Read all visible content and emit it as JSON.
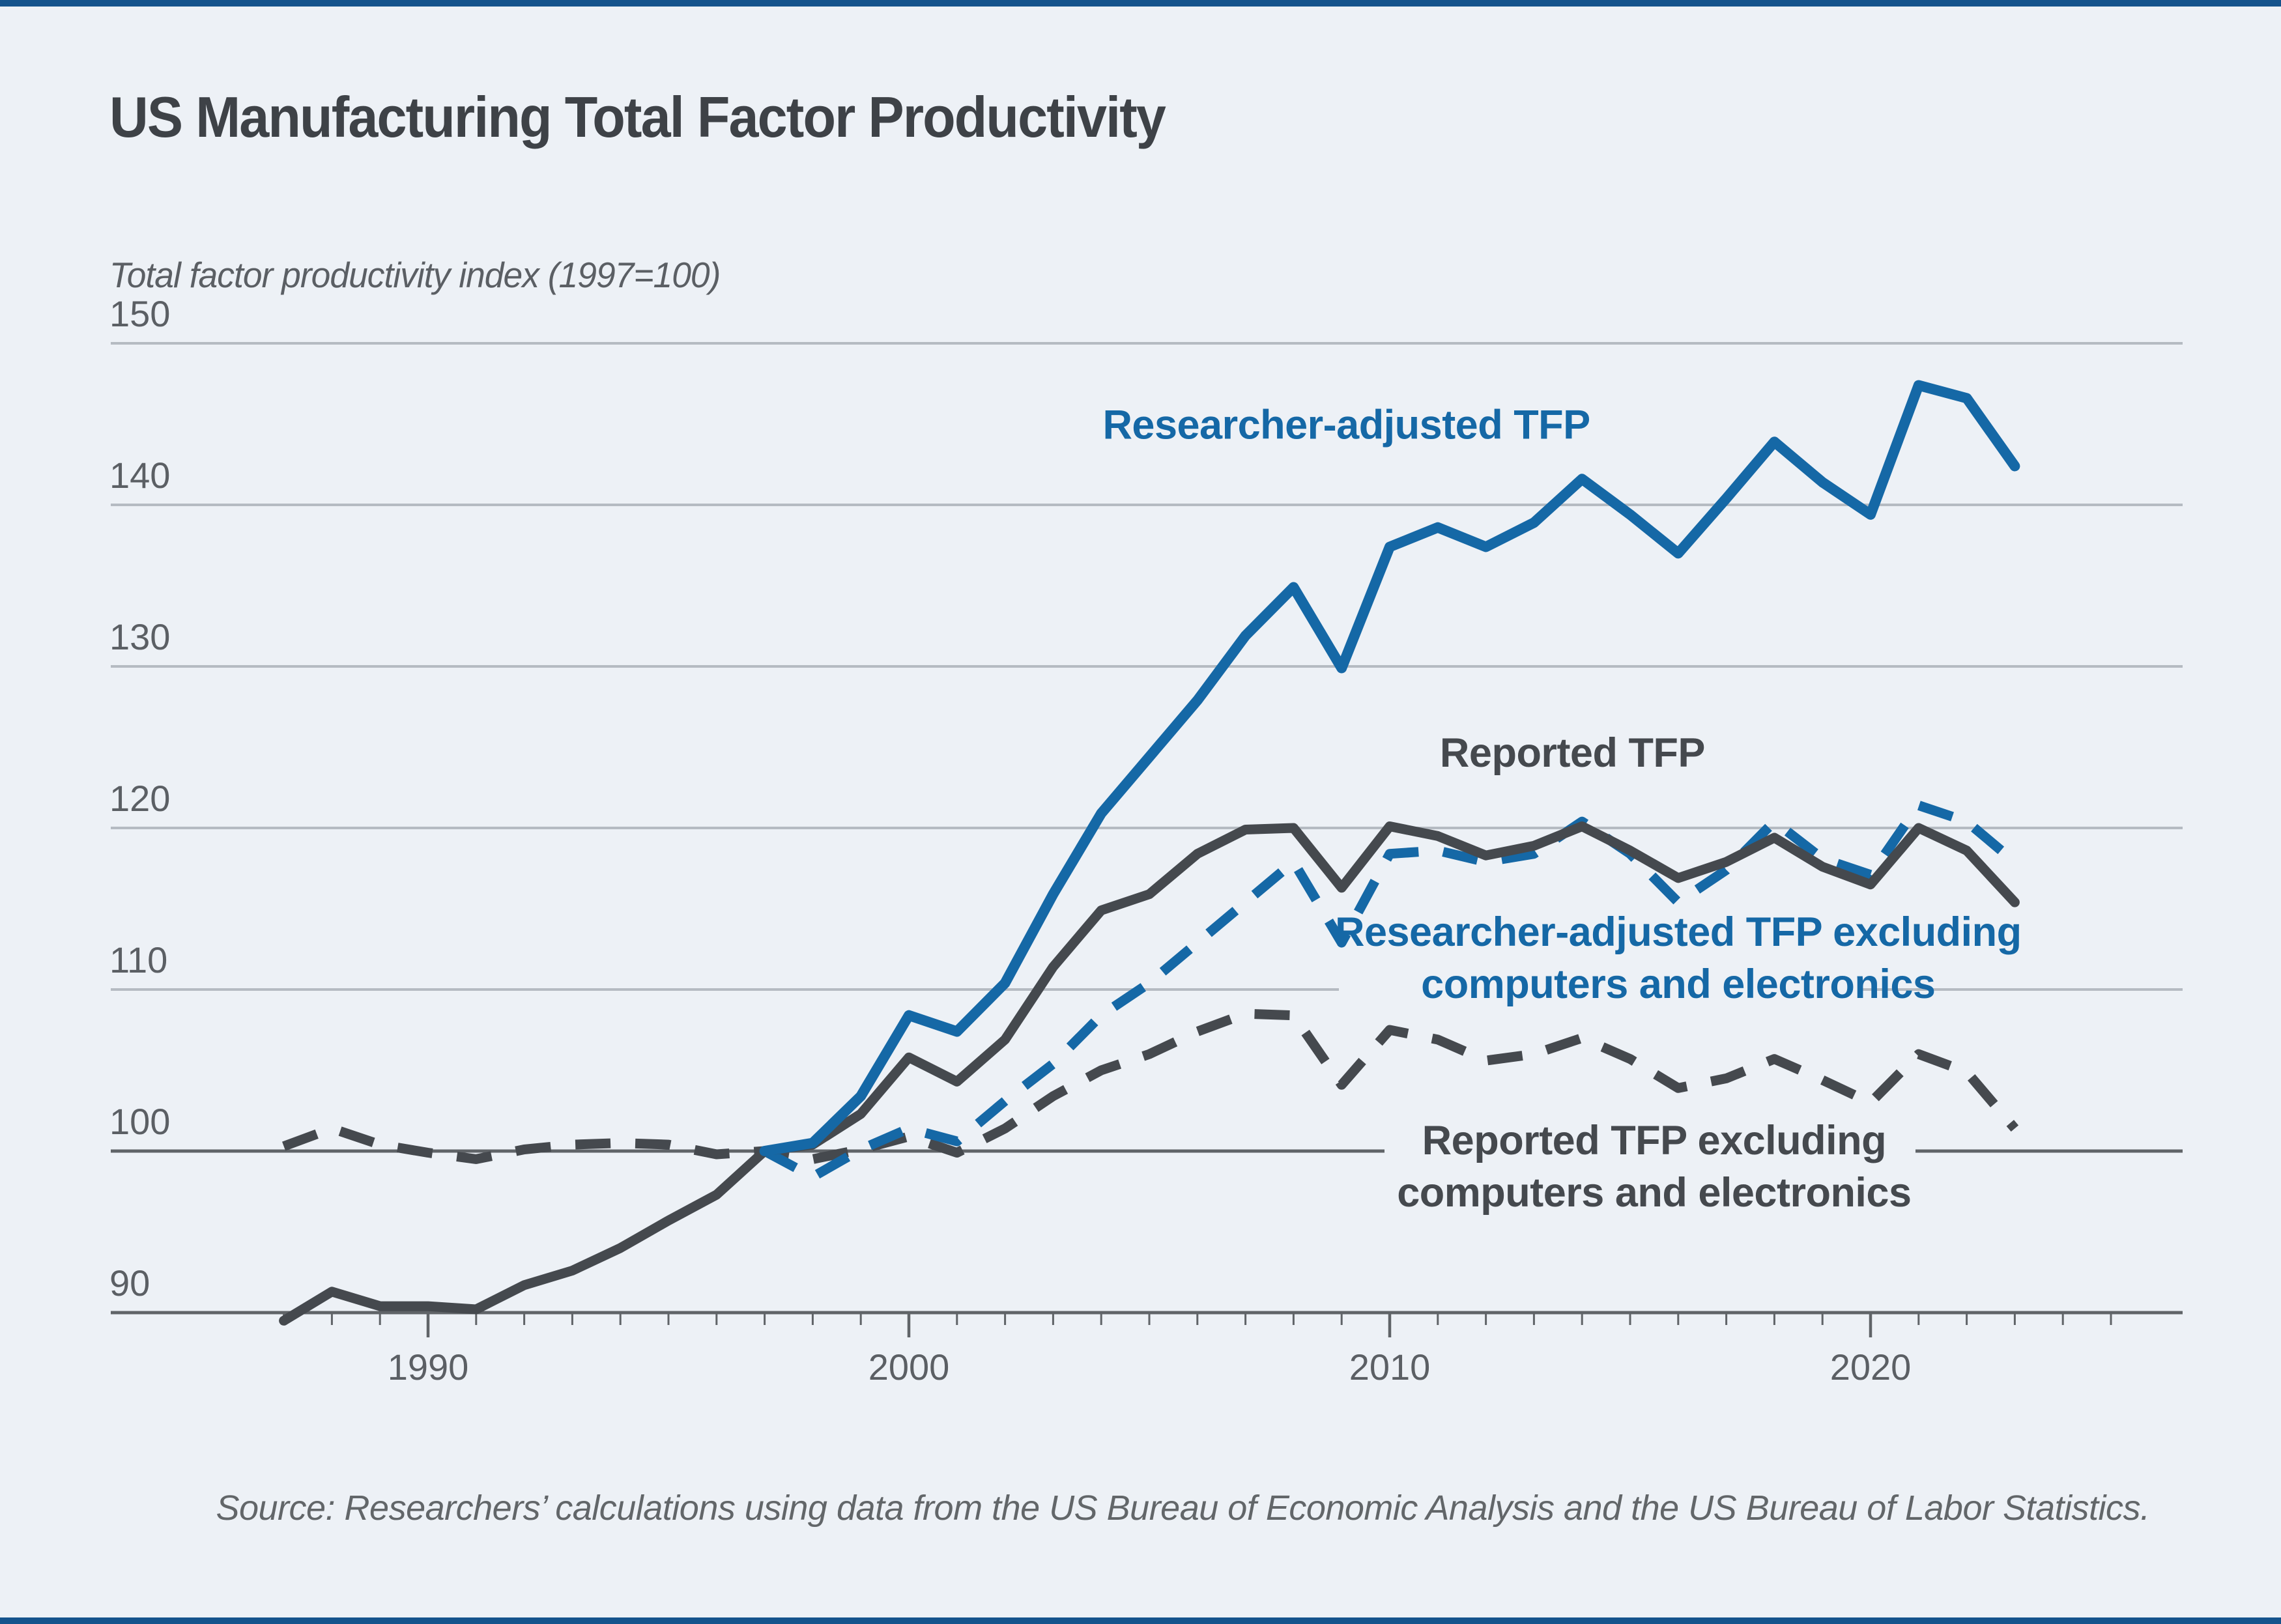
{
  "colors": {
    "background": "#edf1f6",
    "accent_bar": "#14538c",
    "blue_line": "#1568a6",
    "dark_line": "#45494e",
    "grid_light": "#b5bbc2",
    "grid_dark": "#606468",
    "title_text": "#3e4247",
    "axis_label_text": "#5b5f64",
    "source_text": "#626669"
  },
  "chart_data": {
    "type": "line",
    "title": "US Manufacturing Total Factor Productivity",
    "ylabel": "Total factor productivity index (1997=100)",
    "xlabel": "",
    "source": "Source: Researchers’ calculations using data from the US Bureau of Economic Analysis and the US Bureau of Labor Statistics.",
    "grid": true,
    "legend_position": "inline-annotations",
    "x_ticks": [
      1990,
      2000,
      2010,
      2020
    ],
    "minor_x_ticks_every_year_from": 1987,
    "minor_x_ticks_every_year_to": 2025,
    "y_ticks": [
      150,
      140,
      130,
      120,
      110,
      100,
      90
    ],
    "emphasized_gridline": 100,
    "xlim": [
      1983.4,
      2026.5
    ],
    "ylim": [
      88,
      152
    ],
    "series": [
      {
        "name": "Researcher-adjusted TFP",
        "style": "solid",
        "color": "#1568a6",
        "start_year": 1997,
        "values": [
          100.0,
          100.5,
          103.4,
          108.4,
          107.4,
          110.4,
          115.9,
          120.9,
          124.4,
          127.9,
          131.9,
          134.9,
          129.9,
          137.4,
          138.6,
          137.4,
          138.9,
          141.6,
          139.4,
          137.0,
          140.4,
          143.9,
          141.4,
          139.4,
          147.4,
          146.6,
          142.4
        ]
      },
      {
        "name": "Reported TFP",
        "style": "solid",
        "color": "#45494e",
        "start_year": 1987,
        "values": [
          89.5,
          91.3,
          90.4,
          90.4,
          90.2,
          91.7,
          92.6,
          94.0,
          95.7,
          97.3,
          100.0,
          100.4,
          102.3,
          105.8,
          104.3,
          106.9,
          111.4,
          114.9,
          115.9,
          118.4,
          119.9,
          120.0,
          116.3,
          120.1,
          119.5,
          118.3,
          118.9,
          120.1,
          118.6,
          116.9,
          117.9,
          119.4,
          117.6,
          116.5,
          120.0,
          118.6,
          115.4
        ]
      },
      {
        "name": "Researcher-adjusted TFP excluding computers and electronics",
        "style": "dashed",
        "color": "#1568a6",
        "start_year": 1997,
        "values": [
          100.0,
          98.4,
          100.1,
          101.4,
          100.6,
          103.1,
          105.4,
          108.4,
          110.4,
          112.9,
          115.4,
          117.9,
          112.9,
          118.4,
          118.6,
          117.9,
          118.4,
          120.4,
          118.4,
          115.4,
          117.4,
          120.4,
          118.1,
          117.1,
          121.4,
          120.4,
          117.9
        ]
      },
      {
        "name": "Reported TFP excluding computers and electronics",
        "style": "dashed",
        "color": "#45494e",
        "start_year": 1987,
        "values": [
          100.3,
          101.4,
          100.4,
          99.9,
          99.5,
          100.1,
          100.4,
          100.5,
          100.4,
          99.8,
          100.0,
          99.5,
          100.1,
          100.9,
          99.9,
          101.4,
          103.4,
          105.0,
          106.0,
          107.4,
          108.5,
          108.4,
          104.1,
          107.5,
          106.9,
          105.6,
          106.0,
          107.0,
          105.7,
          103.9,
          104.5,
          105.7,
          104.4,
          103.0,
          106.0,
          104.9,
          101.4
        ]
      }
    ],
    "annotations": [
      {
        "lines": [
          "Researcher-adjusted TFP"
        ],
        "color": "#1568a6",
        "year": 2009.1,
        "value": 144.1
      },
      {
        "lines": [
          "Reported TFP"
        ],
        "color": "#45494e",
        "year": 2013.8,
        "value": 123.8
      },
      {
        "lines": [
          "Researcher-adjusted TFP excluding",
          "computers and electronics"
        ],
        "color": "#1568a6",
        "year": 2016.0,
        "value": 112.7
      },
      {
        "lines": [
          "Reported TFP excluding",
          "computers and electronics"
        ],
        "color": "#45494e",
        "year": 2015.5,
        "value": 99.8
      }
    ]
  }
}
